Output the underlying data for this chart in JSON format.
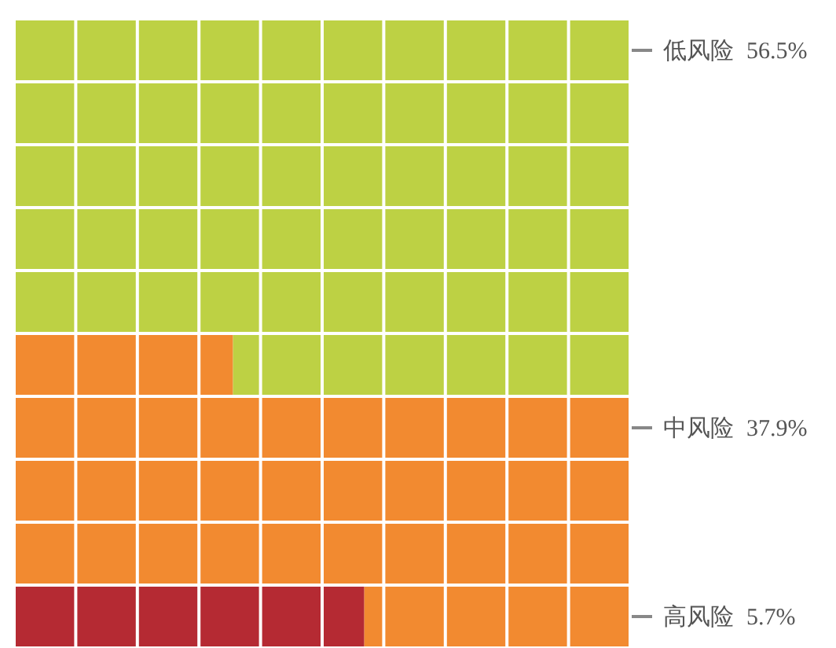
{
  "chart_data": {
    "type": "other",
    "categories": [
      "高风险",
      "中风险",
      "低风险"
    ],
    "values": [
      5.7,
      37.9,
      56.5
    ],
    "value_labels": [
      "5.7%",
      "37.9%",
      "56.5%"
    ],
    "colors": [
      "#b52a33",
      "#f28a30",
      "#bdd144"
    ]
  }
}
